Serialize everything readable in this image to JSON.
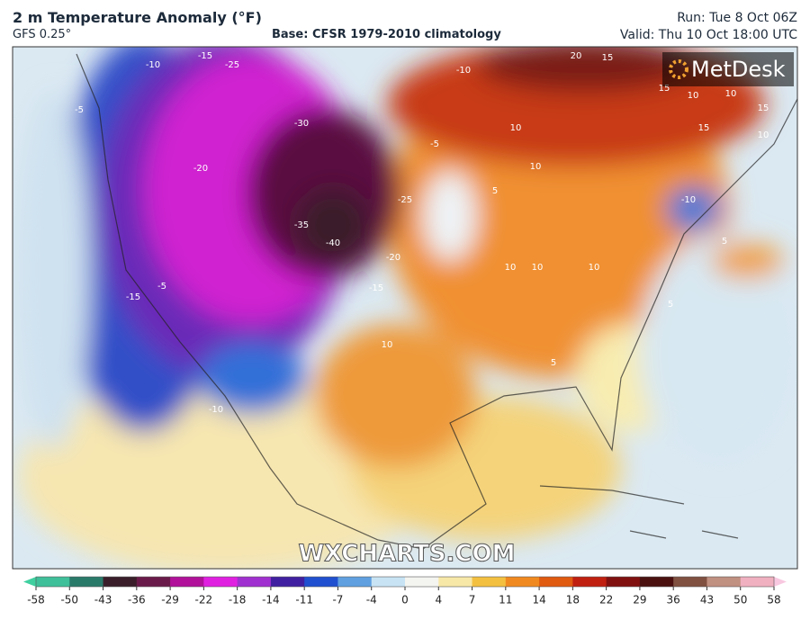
{
  "header": {
    "title": "2 m Temperature Anomaly (°F)",
    "model": "GFS 0.25°",
    "base": "Base: CFSR 1979-2010 climatology",
    "run": "Run: Tue 8 Oct 06Z",
    "valid": "Valid: Thu 10 Oct 18:00 UTC"
  },
  "logo": "MetDesk",
  "watermark": "WXCHARTS.COM",
  "contour_labels": [
    -10,
    -15,
    -25,
    -10,
    20,
    15,
    15,
    10,
    10,
    15,
    15,
    10,
    -30,
    -20,
    -35,
    -40,
    -25,
    -20,
    -15,
    -5,
    -15,
    -5,
    -10,
    10,
    5,
    10,
    10,
    10,
    10,
    -10,
    5,
    5,
    5,
    -5,
    10
  ],
  "colorbar": {
    "ticks": [
      -58,
      -50,
      -43,
      -36,
      -29,
      -22,
      -18,
      -14,
      -11,
      -7,
      -4,
      0,
      4,
      7,
      11,
      14,
      18,
      22,
      29,
      36,
      43,
      50,
      58
    ],
    "colors": [
      "#3fbf9a",
      "#2a7a6a",
      "#3a1f2a",
      "#6a1a4a",
      "#b0109a",
      "#e020e0",
      "#a030d0",
      "#4020a0",
      "#2050d0",
      "#60a0e0",
      "#c8e4f4",
      "#f4f4f0",
      "#f8e8a8",
      "#f4c040",
      "#f08a20",
      "#e05a10",
      "#c02010",
      "#801010",
      "#4a1010",
      "#805040",
      "#c09080",
      "#f0b0c0"
    ],
    "low_color": "#40d0a0",
    "high_color": "#f8c8e0"
  }
}
